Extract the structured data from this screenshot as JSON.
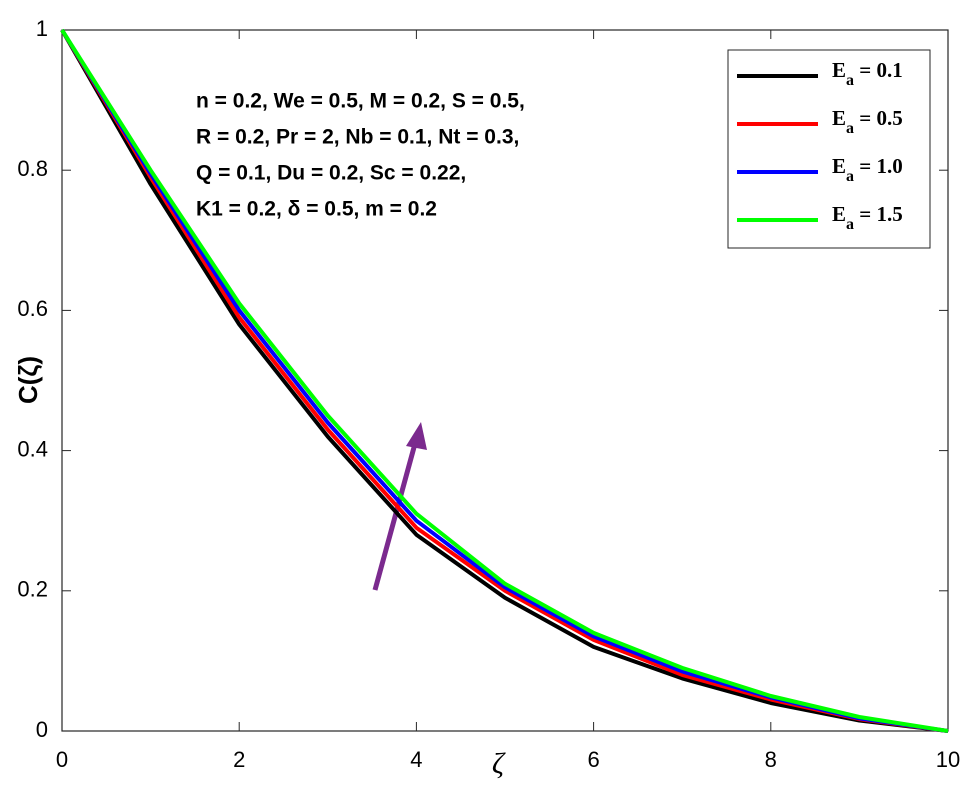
{
  "chart_data": {
    "type": "line",
    "x_label": "ζ",
    "y_label": "C(ζ)",
    "x": [
      0,
      1,
      2,
      3,
      4,
      5,
      6,
      7,
      8,
      9,
      10
    ],
    "series": [
      {
        "name": "Ea = 0.1",
        "color": "#000000",
        "values": [
          1,
          0.78,
          0.58,
          0.42,
          0.28,
          0.19,
          0.12,
          0.075,
          0.04,
          0.015,
          0
        ]
      },
      {
        "name": "Ea  = 0.5",
        "color": "#ff0000",
        "values": [
          1,
          0.79,
          0.59,
          0.43,
          0.29,
          0.2,
          0.13,
          0.08,
          0.045,
          0.017,
          0
        ]
      },
      {
        "name": "Ea  = 1.0",
        "color": "#0000ff",
        "values": [
          1,
          0.795,
          0.6,
          0.44,
          0.3,
          0.205,
          0.135,
          0.085,
          0.048,
          0.018,
          0
        ]
      },
      {
        "name": "Ea  = 1.5",
        "color": "#00ff00",
        "values": [
          1,
          0.8,
          0.61,
          0.45,
          0.31,
          0.21,
          0.14,
          0.09,
          0.05,
          0.02,
          0
        ]
      }
    ],
    "annotation": [
      "n = 0.2, We = 0.5, M = 0.2, S = 0.5,",
      "R = 0.2, Pr = 2, Nb = 0.1, Nt = 0.3,",
      "Q = 0.1, Du = 0.2, Sc = 0.22,",
      "K1 = 0.2, δ = 0.5, m = 0.2"
    ],
    "xlim": [
      0,
      10
    ],
    "xticks": [
      0,
      2,
      4,
      6,
      8,
      10
    ],
    "ylim": [
      0,
      1
    ],
    "yticks": [
      0,
      0.2,
      0.4,
      0.6,
      0.8,
      1
    ],
    "legend": "upper right"
  }
}
